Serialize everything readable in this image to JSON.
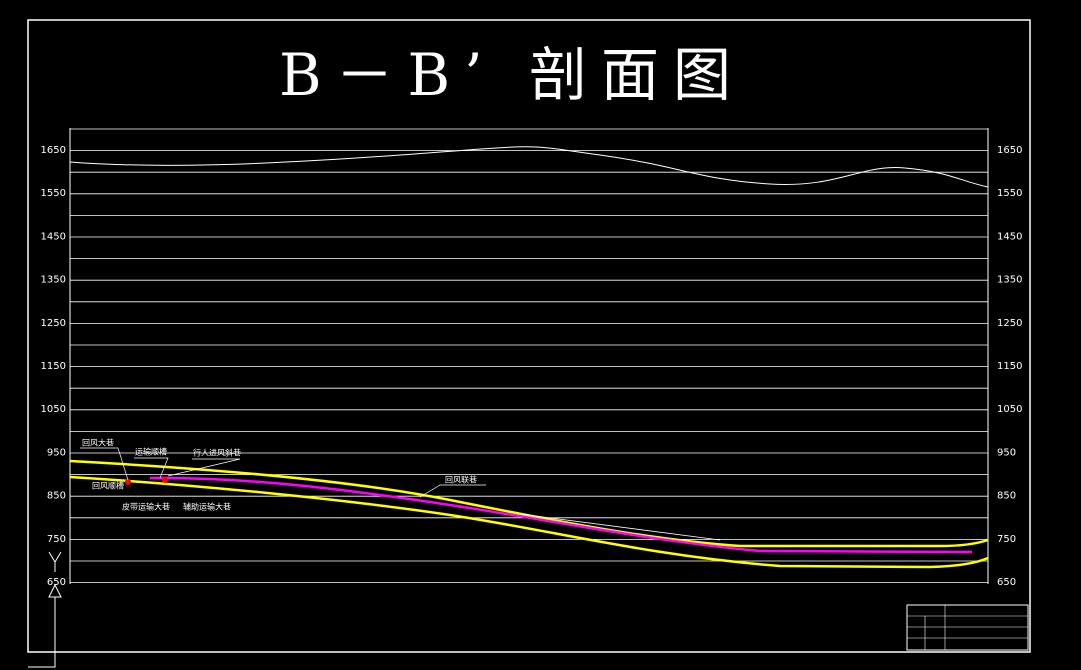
{
  "title": "B－B’ 剖面图",
  "left_axis": [
    1650,
    1550,
    1450,
    1350,
    1250,
    1150,
    1050,
    950,
    850,
    750,
    650
  ],
  "right_axis": [
    1650,
    1550,
    1450,
    1350,
    1250,
    1150,
    1050,
    950,
    850,
    750,
    650
  ],
  "annotations": [
    "回风大巷",
    "运输顺槽",
    "行人进风斜巷",
    "回风顺槽",
    "皮带运输大巷",
    "辅助运输大巷",
    "回风联巷"
  ]
}
